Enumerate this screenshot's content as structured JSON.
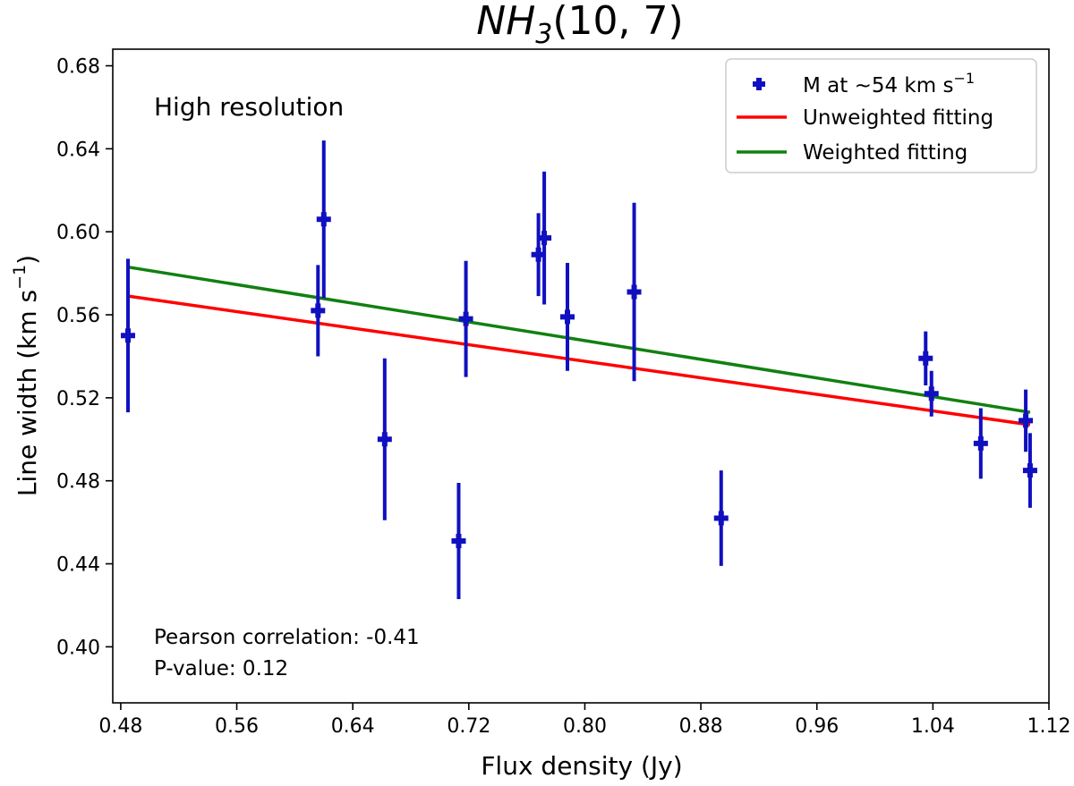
{
  "chart_data": {
    "type": "scatter",
    "title": "NH3(10, 7)",
    "title_parts": {
      "base": "NH",
      "sub": "3",
      "rest": "(10, 7)"
    },
    "xlabel": "Flux density (Jy)",
    "ylabel": "Line width (km s⁻¹)",
    "ylabel_parts": {
      "main": "Line width (km s",
      "sup": "−1",
      "close": ")"
    },
    "xlim": [
      0.4745,
      1.12
    ],
    "ylim": [
      0.373,
      0.688
    ],
    "xticks": [
      0.48,
      0.56,
      0.64,
      0.72,
      0.8,
      0.88,
      0.96,
      1.04,
      1.12
    ],
    "xtick_labels": [
      "0.48",
      "0.56",
      "0.64",
      "0.72",
      "0.80",
      "0.88",
      "0.96",
      "1.04",
      "1.12"
    ],
    "yticks": [
      0.4,
      0.44,
      0.48,
      0.52,
      0.56,
      0.6,
      0.64,
      0.68
    ],
    "ytick_labels": [
      "0.40",
      "0.44",
      "0.48",
      "0.52",
      "0.56",
      "0.60",
      "0.64",
      "0.68"
    ],
    "grid": false,
    "annotation": "High resolution",
    "stats": {
      "pearson_text": "Pearson correlation: -0.41",
      "pvalue_text": "P-value: 0.12"
    },
    "legend": {
      "position": "top-right",
      "entries": [
        {
          "label_main": "M at ~54 km s",
          "label_sup": "−1",
          "color": "#1010c0",
          "kind": "marker"
        },
        {
          "label_main": "Unweighted fitting",
          "label_sup": "",
          "color": "#ff0000",
          "kind": "line"
        },
        {
          "label_main": "Weighted fitting",
          "label_sup": "",
          "color": "#118011",
          "kind": "line"
        }
      ]
    },
    "series": [
      {
        "name": "M at ~54 km s⁻¹",
        "color": "#1010c0",
        "points": [
          {
            "x": 0.485,
            "y": 0.55,
            "yerr": 0.037
          },
          {
            "x": 0.616,
            "y": 0.562,
            "yerr": 0.022
          },
          {
            "x": 0.62,
            "y": 0.606,
            "yerr": 0.038
          },
          {
            "x": 0.662,
            "y": 0.5,
            "yerr": 0.039
          },
          {
            "x": 0.713,
            "y": 0.451,
            "yerr": 0.028
          },
          {
            "x": 0.718,
            "y": 0.558,
            "yerr": 0.028
          },
          {
            "x": 0.768,
            "y": 0.589,
            "yerr": 0.02
          },
          {
            "x": 0.772,
            "y": 0.597,
            "yerr": 0.032
          },
          {
            "x": 0.788,
            "y": 0.559,
            "yerr": 0.026
          },
          {
            "x": 0.834,
            "y": 0.571,
            "yerr": 0.043
          },
          {
            "x": 0.894,
            "y": 0.462,
            "yerr": 0.023
          },
          {
            "x": 1.035,
            "y": 0.539,
            "yerr": 0.013
          },
          {
            "x": 1.039,
            "y": 0.522,
            "yerr": 0.011
          },
          {
            "x": 1.073,
            "y": 0.498,
            "yerr": 0.017
          },
          {
            "x": 1.104,
            "y": 0.509,
            "yerr": 0.015
          },
          {
            "x": 1.107,
            "y": 0.485,
            "yerr": 0.018
          }
        ]
      }
    ],
    "fits": [
      {
        "name": "Unweighted fitting",
        "color": "#ff0000",
        "x": [
          0.485,
          1.107
        ],
        "y": [
          0.569,
          0.507
        ]
      },
      {
        "name": "Weighted fitting",
        "color": "#118011",
        "x": [
          0.485,
          1.107
        ],
        "y": [
          0.583,
          0.513
        ]
      }
    ]
  }
}
